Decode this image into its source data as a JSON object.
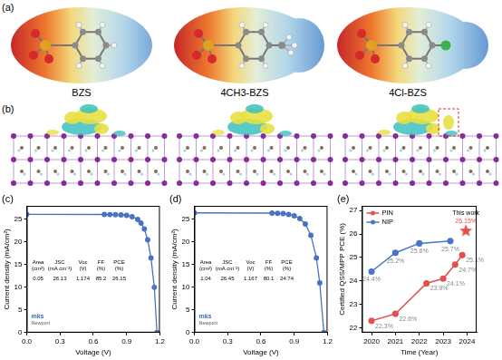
{
  "figure": {
    "panel_a": {
      "label": "(a)",
      "molecules": [
        "BZS",
        "4CH3-BZS",
        "4Cl-BZS"
      ]
    },
    "panel_b": {
      "label": "(b)"
    }
  },
  "chart_data": [
    {
      "title": "(c)",
      "type": "line",
      "x": [
        0,
        0.7,
        0.75,
        0.8,
        0.85,
        0.9,
        0.95,
        1.0,
        1.03,
        1.06,
        1.09,
        1.12,
        1.15,
        1.174
      ],
      "values": [
        26.13,
        26.1,
        26.08,
        26.05,
        26.0,
        25.9,
        25.6,
        25.0,
        24.2,
        22.9,
        20.5,
        16.5,
        10.0,
        0
      ],
      "color": "#4a72c4",
      "marker": "circle",
      "xlabel": "Voltage (V)",
      "ylabel": "Current density (mA/cm²)",
      "xlim": [
        0,
        1.2
      ],
      "xticks": [
        {
          "value": 0,
          "label": "0.0"
        },
        0.3,
        0.6,
        0.9,
        1.2
      ],
      "ylim": [
        0,
        28
      ],
      "yticks": [
        0,
        5,
        10,
        15,
        20,
        25
      ],
      "grid": false,
      "table": {
        "header": [
          [
            "Area",
            "(cm²)"
          ],
          [
            "JSC",
            "(mA cm⁻²)"
          ],
          [
            "Voc",
            "(V)"
          ],
          [
            "FF",
            "(%)"
          ],
          [
            "PCE",
            "(%)"
          ]
        ],
        "rows": [
          [
            "0.05",
            "26.13",
            "1.174",
            "85.2",
            "26.15"
          ]
        ]
      },
      "logo": [
        "mks",
        "Newport"
      ]
    },
    {
      "title": "(d)",
      "type": "line",
      "x": [
        0,
        0.7,
        0.75,
        0.8,
        0.85,
        0.9,
        0.95,
        1.0,
        1.05,
        1.1,
        1.13,
        1.167
      ],
      "values": [
        26.45,
        26.4,
        26.35,
        26.3,
        26.1,
        25.8,
        25.2,
        24.0,
        21.5,
        16.5,
        11.0,
        0
      ],
      "color": "#4a72c4",
      "marker": "circle",
      "xlabel": "Voltage (V)",
      "ylabel": "Current density (mA/cm²)",
      "xlim": [
        0,
        1.2
      ],
      "xticks": [
        {
          "value": 0,
          "label": "0.0"
        },
        0.3,
        0.6,
        0.9,
        1.2
      ],
      "ylim": [
        0,
        28
      ],
      "yticks": [
        0,
        5,
        10,
        15,
        20,
        25
      ],
      "grid": false,
      "table": {
        "header": [
          [
            "Area",
            "(cm²)"
          ],
          [
            "JSC",
            "(mA cm⁻²)"
          ],
          [
            "Voc",
            "(V)"
          ],
          [
            "FF",
            "(%)"
          ],
          [
            "PCE",
            "(%)"
          ]
        ],
        "rows": [
          [
            "1.04",
            "26.45",
            "1.167",
            "80.1",
            "24.74"
          ]
        ]
      },
      "logo": [
        "mks",
        "Newport"
      ]
    },
    {
      "title": "(e)",
      "type": "line",
      "xlabel": "Time (Year)",
      "ylabel": "Certified QSS/MPP PCE (%)",
      "xlim": [
        2019.6,
        2024.4
      ],
      "xticks": [
        2020,
        2021,
        2022,
        2023,
        2024
      ],
      "ylim": [
        21.8,
        27.2
      ],
      "yticks": [
        22,
        23,
        24,
        25,
        26,
        27
      ],
      "grid": false,
      "legend": "upper left",
      "data_labels": true,
      "series": [
        {
          "name": "PIN",
          "color": "#e2504f",
          "marker": "circle",
          "x": [
            2020,
            2021,
            2022.3,
            2023.0,
            2023.5,
            2023.8
          ],
          "values": [
            22.3,
            22.6,
            23.9,
            24.1,
            24.7,
            25.1
          ],
          "value_labels": [
            "22.3%",
            "22.6%",
            "23.9%",
            "24.1%",
            "24.7%",
            "25.1%"
          ]
        },
        {
          "name": "NIP",
          "color": "#4a74c9",
          "marker": "circle",
          "x": [
            2020,
            2021,
            2022,
            2023.3
          ],
          "values": [
            24.4,
            25.2,
            25.6,
            25.7
          ],
          "value_labels": [
            "24.4%",
            "25.2%",
            "25.6%",
            "25.7%"
          ]
        }
      ],
      "annotations": [
        {
          "text": "This work",
          "x": 2023.95,
          "y": 26.15,
          "value_label": "26.15%",
          "marker": "star",
          "color": "#e2504f"
        }
      ]
    }
  ]
}
